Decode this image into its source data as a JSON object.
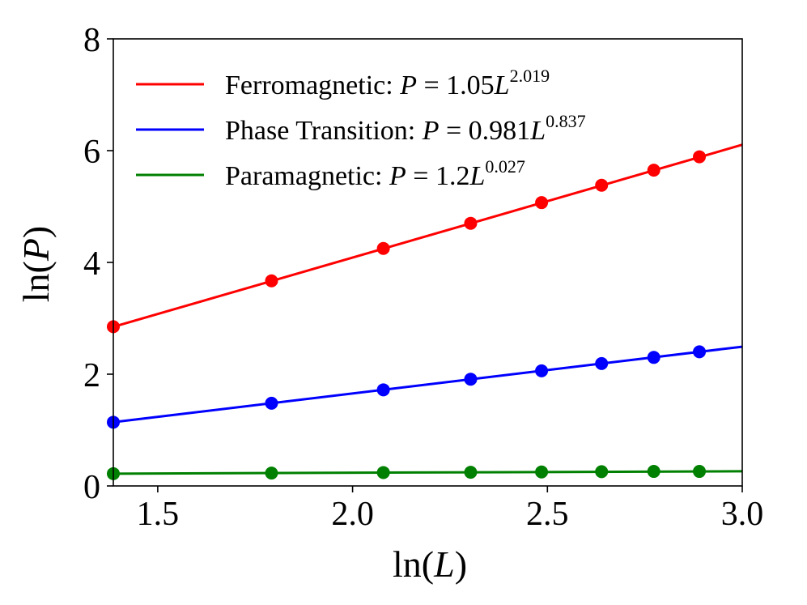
{
  "chart_data": {
    "type": "line",
    "xlabel_prefix": "ln(",
    "xlabel_var": "L",
    "xlabel_suffix": ")",
    "ylabel_prefix": "ln(",
    "ylabel_var": "P",
    "ylabel_suffix": ")",
    "xlim": [
      1.386,
      3.0
    ],
    "ylim": [
      0,
      8
    ],
    "x_ticks": [
      1.5,
      2.0,
      2.5,
      3.0
    ],
    "x_tick_labels": [
      "1.5",
      "2.0",
      "2.5",
      "3.0"
    ],
    "y_ticks": [
      0,
      2,
      4,
      6,
      8
    ],
    "y_tick_labels": [
      "0",
      "2",
      "4",
      "6",
      "8"
    ],
    "legend_position": "upper-left",
    "x": [
      1.386,
      1.792,
      2.079,
      2.303,
      2.485,
      2.639,
      2.773,
      2.89
    ],
    "series": [
      {
        "name": "Ferromagnetic",
        "label_prefix": "Ferromagnetic: ",
        "label_eq_lhs": "P",
        "label_eq_mid": " = 1.05",
        "label_eq_var": "L",
        "label_exp": "2.019",
        "color": "#ff0000",
        "intercept": 0.0488,
        "slope": 2.019,
        "values": [
          2.85,
          3.67,
          4.25,
          4.7,
          5.07,
          5.38,
          5.65,
          5.89
        ]
      },
      {
        "name": "Phase Transition",
        "label_prefix": "Phase Transition: ",
        "label_eq_lhs": "P",
        "label_eq_mid": " = 0.981",
        "label_eq_var": "L",
        "label_exp": "0.837",
        "color": "#0000ff",
        "intercept": -0.0192,
        "slope": 0.837,
        "values": [
          1.14,
          1.48,
          1.72,
          1.91,
          2.06,
          2.19,
          2.3,
          2.4
        ]
      },
      {
        "name": "Paramagnetic",
        "label_prefix": "Paramagnetic: ",
        "label_eq_lhs": "P",
        "label_eq_mid": " = 1.2",
        "label_eq_var": "L",
        "label_exp": "0.027",
        "color": "#008000",
        "intercept": 0.182,
        "slope": 0.027,
        "values": [
          0.22,
          0.23,
          0.24,
          0.245,
          0.25,
          0.255,
          0.26,
          0.26
        ]
      }
    ]
  }
}
